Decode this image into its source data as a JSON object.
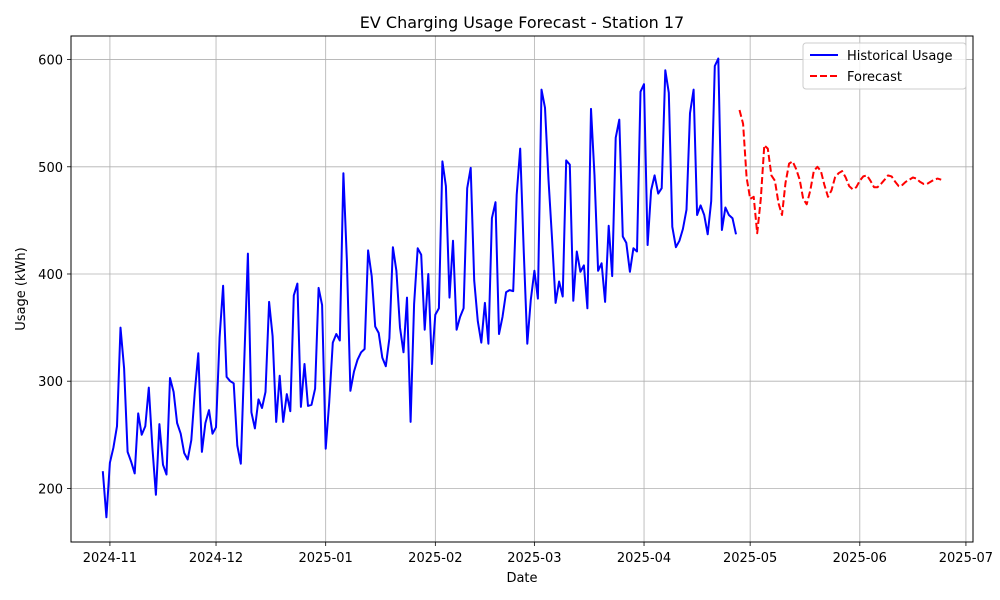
{
  "chart_data": {
    "type": "line",
    "title": "EV Charging Usage Forecast - Station 17",
    "xlabel": "Date",
    "ylabel": "Usage (kWh)",
    "x_axis": {
      "type": "date",
      "range": [
        "2024-10-21",
        "2025-07-03"
      ],
      "ticks": [
        "2024-11-01",
        "2024-12-01",
        "2025-01-01",
        "2025-02-01",
        "2025-03-01",
        "2025-04-01",
        "2025-05-01",
        "2025-06-01",
        "2025-07-01"
      ],
      "tick_labels": [
        "2024-11",
        "2024-12",
        "2025-01",
        "2025-02",
        "2025-03",
        "2025-04",
        "2025-05",
        "2025-06",
        "2025-07"
      ]
    },
    "y_axis": {
      "range": [
        150,
        622
      ],
      "ticks": [
        200,
        300,
        400,
        500,
        600
      ],
      "tick_labels": [
        "200",
        "300",
        "400",
        "500",
        "600"
      ]
    },
    "grid": true,
    "legend_position": "top-right",
    "series": [
      {
        "name": "Historical Usage",
        "color": "#0000ff",
        "style": "solid",
        "points": [
          [
            "2024-10-30",
            216
          ],
          [
            "2024-10-31",
            173
          ],
          [
            "2024-11-01",
            224
          ],
          [
            "2024-11-02",
            238
          ],
          [
            "2024-11-03",
            258
          ],
          [
            "2024-11-04",
            350
          ],
          [
            "2024-11-05",
            312
          ],
          [
            "2024-11-06",
            234
          ],
          [
            "2024-11-07",
            225
          ],
          [
            "2024-11-08",
            214
          ],
          [
            "2024-11-09",
            270
          ],
          [
            "2024-11-10",
            250
          ],
          [
            "2024-11-11",
            258
          ],
          [
            "2024-11-12",
            294
          ],
          [
            "2024-11-13",
            238
          ],
          [
            "2024-11-14",
            194
          ],
          [
            "2024-11-15",
            260
          ],
          [
            "2024-11-16",
            222
          ],
          [
            "2024-11-17",
            213
          ],
          [
            "2024-11-18",
            303
          ],
          [
            "2024-11-19",
            290
          ],
          [
            "2024-11-20",
            261
          ],
          [
            "2024-11-21",
            251
          ],
          [
            "2024-11-22",
            233
          ],
          [
            "2024-11-23",
            227
          ],
          [
            "2024-11-24",
            245
          ],
          [
            "2024-11-25",
            290
          ],
          [
            "2024-11-26",
            326
          ],
          [
            "2024-11-27",
            234
          ],
          [
            "2024-11-28",
            261
          ],
          [
            "2024-11-29",
            273
          ],
          [
            "2024-11-30",
            251
          ],
          [
            "2024-12-01",
            257
          ],
          [
            "2024-12-02",
            341
          ],
          [
            "2024-12-03",
            389
          ],
          [
            "2024-12-04",
            304
          ],
          [
            "2024-12-05",
            300
          ],
          [
            "2024-12-06",
            298
          ],
          [
            "2024-12-07",
            240
          ],
          [
            "2024-12-08",
            223
          ],
          [
            "2024-12-09",
            320
          ],
          [
            "2024-12-10",
            419
          ],
          [
            "2024-12-11",
            271
          ],
          [
            "2024-12-12",
            256
          ],
          [
            "2024-12-13",
            283
          ],
          [
            "2024-12-14",
            275
          ],
          [
            "2024-12-15",
            290
          ],
          [
            "2024-12-16",
            374
          ],
          [
            "2024-12-17",
            342
          ],
          [
            "2024-12-18",
            262
          ],
          [
            "2024-12-19",
            305
          ],
          [
            "2024-12-20",
            262
          ],
          [
            "2024-12-21",
            288
          ],
          [
            "2024-12-22",
            272
          ],
          [
            "2024-12-23",
            380
          ],
          [
            "2024-12-24",
            391
          ],
          [
            "2024-12-25",
            276
          ],
          [
            "2024-12-26",
            316
          ],
          [
            "2024-12-27",
            277
          ],
          [
            "2024-12-28",
            278
          ],
          [
            "2024-12-29",
            293
          ],
          [
            "2024-12-30",
            387
          ],
          [
            "2024-12-31",
            371
          ],
          [
            "2025-01-01",
            237
          ],
          [
            "2025-01-02",
            280
          ],
          [
            "2025-01-03",
            336
          ],
          [
            "2025-01-04",
            344
          ],
          [
            "2025-01-05",
            338
          ],
          [
            "2025-01-06",
            494
          ],
          [
            "2025-01-07",
            412
          ],
          [
            "2025-01-08",
            291
          ],
          [
            "2025-01-09",
            309
          ],
          [
            "2025-01-10",
            320
          ],
          [
            "2025-01-11",
            327
          ],
          [
            "2025-01-12",
            330
          ],
          [
            "2025-01-13",
            422
          ],
          [
            "2025-01-14",
            398
          ],
          [
            "2025-01-15",
            351
          ],
          [
            "2025-01-16",
            345
          ],
          [
            "2025-01-17",
            322
          ],
          [
            "2025-01-18",
            314
          ],
          [
            "2025-01-19",
            340
          ],
          [
            "2025-01-20",
            425
          ],
          [
            "2025-01-21",
            403
          ],
          [
            "2025-01-22",
            350
          ],
          [
            "2025-01-23",
            327
          ],
          [
            "2025-01-24",
            378
          ],
          [
            "2025-01-25",
            262
          ],
          [
            "2025-01-26",
            372
          ],
          [
            "2025-01-27",
            424
          ],
          [
            "2025-01-28",
            418
          ],
          [
            "2025-01-29",
            348
          ],
          [
            "2025-01-30",
            400
          ],
          [
            "2025-01-31",
            316
          ],
          [
            "2025-02-01",
            362
          ],
          [
            "2025-02-02",
            368
          ],
          [
            "2025-02-03",
            505
          ],
          [
            "2025-02-04",
            482
          ],
          [
            "2025-02-05",
            378
          ],
          [
            "2025-02-06",
            431
          ],
          [
            "2025-02-07",
            348
          ],
          [
            "2025-02-08",
            360
          ],
          [
            "2025-02-09",
            368
          ],
          [
            "2025-02-10",
            480
          ],
          [
            "2025-02-11",
            499
          ],
          [
            "2025-02-12",
            394
          ],
          [
            "2025-02-13",
            356
          ],
          [
            "2025-02-14",
            336
          ],
          [
            "2025-02-15",
            373
          ],
          [
            "2025-02-16",
            335
          ],
          [
            "2025-02-17",
            452
          ],
          [
            "2025-02-18",
            467
          ],
          [
            "2025-02-19",
            344
          ],
          [
            "2025-02-20",
            360
          ],
          [
            "2025-02-21",
            383
          ],
          [
            "2025-02-22",
            385
          ],
          [
            "2025-02-23",
            384
          ],
          [
            "2025-02-24",
            474
          ],
          [
            "2025-02-25",
            517
          ],
          [
            "2025-02-26",
            420
          ],
          [
            "2025-02-27",
            335
          ],
          [
            "2025-02-28",
            376
          ],
          [
            "2025-03-01",
            403
          ],
          [
            "2025-03-02",
            377
          ],
          [
            "2025-03-03",
            572
          ],
          [
            "2025-03-04",
            555
          ],
          [
            "2025-03-05",
            488
          ],
          [
            "2025-03-06",
            432
          ],
          [
            "2025-03-07",
            373
          ],
          [
            "2025-03-08",
            393
          ],
          [
            "2025-03-09",
            379
          ],
          [
            "2025-03-10",
            506
          ],
          [
            "2025-03-11",
            502
          ],
          [
            "2025-03-12",
            375
          ],
          [
            "2025-03-13",
            421
          ],
          [
            "2025-03-14",
            402
          ],
          [
            "2025-03-15",
            408
          ],
          [
            "2025-03-16",
            368
          ],
          [
            "2025-03-17",
            554
          ],
          [
            "2025-03-18",
            492
          ],
          [
            "2025-03-19",
            403
          ],
          [
            "2025-03-20",
            410
          ],
          [
            "2025-03-21",
            374
          ],
          [
            "2025-03-22",
            445
          ],
          [
            "2025-03-23",
            398
          ],
          [
            "2025-03-24",
            527
          ],
          [
            "2025-03-25",
            544
          ],
          [
            "2025-03-26",
            435
          ],
          [
            "2025-03-27",
            429
          ],
          [
            "2025-03-28",
            402
          ],
          [
            "2025-03-29",
            424
          ],
          [
            "2025-03-30",
            421
          ],
          [
            "2025-03-31",
            570
          ],
          [
            "2025-04-01",
            577
          ],
          [
            "2025-04-02",
            427
          ],
          [
            "2025-04-03",
            478
          ],
          [
            "2025-04-04",
            492
          ],
          [
            "2025-04-05",
            475
          ],
          [
            "2025-04-06",
            480
          ],
          [
            "2025-04-07",
            590
          ],
          [
            "2025-04-08",
            569
          ],
          [
            "2025-04-09",
            444
          ],
          [
            "2025-04-10",
            425
          ],
          [
            "2025-04-11",
            431
          ],
          [
            "2025-04-12",
            442
          ],
          [
            "2025-04-13",
            460
          ],
          [
            "2025-04-14",
            550
          ],
          [
            "2025-04-15",
            572
          ],
          [
            "2025-04-16",
            455
          ],
          [
            "2025-04-17",
            464
          ],
          [
            "2025-04-18",
            455
          ],
          [
            "2025-04-19",
            437
          ],
          [
            "2025-04-20",
            468
          ],
          [
            "2025-04-21",
            594
          ],
          [
            "2025-04-22",
            601
          ],
          [
            "2025-04-23",
            441
          ],
          [
            "2025-04-24",
            462
          ],
          [
            "2025-04-25",
            455
          ],
          [
            "2025-04-26",
            452
          ],
          [
            "2025-04-27",
            437
          ]
        ]
      },
      {
        "name": "Forecast",
        "color": "#ff0000",
        "style": "dashed",
        "points": [
          [
            "2025-04-28",
            553
          ],
          [
            "2025-04-29",
            540
          ],
          [
            "2025-04-30",
            490
          ],
          [
            "2025-05-01",
            470
          ],
          [
            "2025-05-02",
            472
          ],
          [
            "2025-05-03",
            438
          ],
          [
            "2025-05-04",
            470
          ],
          [
            "2025-05-05",
            520
          ],
          [
            "2025-05-06",
            517
          ],
          [
            "2025-05-07",
            492
          ],
          [
            "2025-05-08",
            487
          ],
          [
            "2025-05-09",
            466
          ],
          [
            "2025-05-10",
            455
          ],
          [
            "2025-05-11",
            485
          ],
          [
            "2025-05-12",
            503
          ],
          [
            "2025-05-13",
            505
          ],
          [
            "2025-05-14",
            498
          ],
          [
            "2025-05-15",
            488
          ],
          [
            "2025-05-16",
            470
          ],
          [
            "2025-05-17",
            465
          ],
          [
            "2025-05-18",
            478
          ],
          [
            "2025-05-19",
            496
          ],
          [
            "2025-05-20",
            500
          ],
          [
            "2025-05-21",
            496
          ],
          [
            "2025-05-22",
            483
          ],
          [
            "2025-05-23",
            472
          ],
          [
            "2025-05-24",
            478
          ],
          [
            "2025-05-25",
            490
          ],
          [
            "2025-05-26",
            494
          ],
          [
            "2025-05-27",
            496
          ],
          [
            "2025-05-28",
            490
          ],
          [
            "2025-05-29",
            482
          ],
          [
            "2025-05-30",
            479
          ],
          [
            "2025-05-31",
            481
          ],
          [
            "2025-06-01",
            487
          ],
          [
            "2025-06-02",
            491
          ],
          [
            "2025-06-03",
            492
          ],
          [
            "2025-06-04",
            487
          ],
          [
            "2025-06-05",
            481
          ],
          [
            "2025-06-06",
            481
          ],
          [
            "2025-06-07",
            484
          ],
          [
            "2025-06-08",
            488
          ],
          [
            "2025-06-09",
            492
          ],
          [
            "2025-06-10",
            491
          ],
          [
            "2025-06-11",
            486
          ],
          [
            "2025-06-12",
            482
          ],
          [
            "2025-06-13",
            483
          ],
          [
            "2025-06-14",
            486
          ],
          [
            "2025-06-15",
            488
          ],
          [
            "2025-06-16",
            490
          ],
          [
            "2025-06-17",
            489
          ],
          [
            "2025-06-18",
            486
          ],
          [
            "2025-06-19",
            484
          ],
          [
            "2025-06-20",
            484
          ],
          [
            "2025-06-21",
            486
          ],
          [
            "2025-06-22",
            488
          ],
          [
            "2025-06-23",
            489
          ],
          [
            "2025-06-24",
            488
          ]
        ]
      }
    ]
  }
}
